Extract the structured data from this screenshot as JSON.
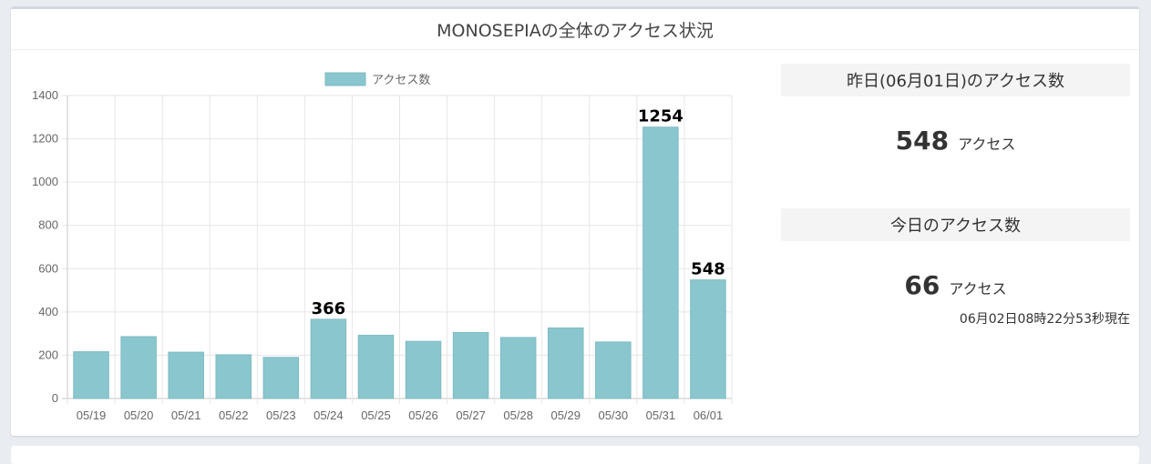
{
  "panel": {
    "title": "MONOSEPIAの全体のアクセス状況"
  },
  "chart_data": {
    "type": "bar",
    "categories": [
      "05/19",
      "05/20",
      "05/21",
      "05/22",
      "05/23",
      "05/24",
      "05/25",
      "05/26",
      "05/27",
      "05/28",
      "05/29",
      "05/30",
      "05/31",
      "06/01"
    ],
    "series": [
      {
        "name": "アクセス数",
        "values": [
          216,
          286,
          214,
          202,
          190,
          366,
          292,
          264,
          305,
          282,
          326,
          261,
          1254,
          548
        ]
      }
    ],
    "data_labels": {
      "05/24": "366",
      "05/31": "1254",
      "06/01": "548"
    },
    "xlabel": "",
    "ylabel": "",
    "ylim": [
      0,
      1400
    ],
    "yticks": [
      0,
      200,
      400,
      600,
      800,
      1000,
      1200,
      1400
    ],
    "grid": true,
    "legend": "top",
    "bar_color": "#8ac6cd",
    "bar_border_color": "#7ebbc3"
  },
  "yesterday": {
    "heading": "昨日(06月01日)のアクセス数",
    "count": "548",
    "unit": "アクセス"
  },
  "today": {
    "heading": "今日のアクセス数",
    "count": "66",
    "unit": "アクセス",
    "as_of": "06月02日08時22分53秒現在"
  }
}
